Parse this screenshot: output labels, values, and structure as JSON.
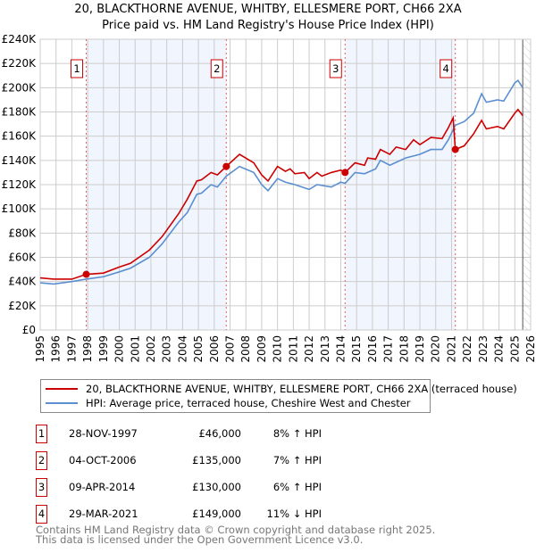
{
  "title": "20, BLACKTHORNE AVENUE, WHITBY, ELLESMERE PORT, CH66 2XA",
  "subtitle": "Price paid vs. HM Land Registry's House Price Index (HPI)",
  "chart_data": {
    "type": "line",
    "title": "20, BLACKTHORNE AVENUE, WHITBY, ELLESMERE PORT, CH66 2XA",
    "subtitle": "Price paid vs. HM Land Registry's House Price Index (HPI)",
    "xlim": [
      1995,
      2026
    ],
    "ylim": [
      0,
      240000
    ],
    "x_ticks": [
      "1995",
      "1996",
      "1997",
      "1998",
      "1999",
      "2000",
      "2001",
      "2002",
      "2003",
      "2004",
      "2005",
      "2006",
      "2007",
      "2008",
      "2009",
      "2010",
      "2011",
      "2012",
      "2013",
      "2014",
      "2015",
      "2016",
      "2017",
      "2018",
      "2019",
      "2020",
      "2021",
      "2022",
      "2023",
      "2024",
      "2025",
      "2026"
    ],
    "y_ticks": [
      {
        "v": 0,
        "label": "£0"
      },
      {
        "v": 20000,
        "label": "£20K"
      },
      {
        "v": 40000,
        "label": "£40K"
      },
      {
        "v": 60000,
        "label": "£60K"
      },
      {
        "v": 80000,
        "label": "£80K"
      },
      {
        "v": 100000,
        "label": "£100K"
      },
      {
        "v": 120000,
        "label": "£120K"
      },
      {
        "v": 140000,
        "label": "£140K"
      },
      {
        "v": 160000,
        "label": "£160K"
      },
      {
        "v": 180000,
        "label": "£180K"
      },
      {
        "v": 200000,
        "label": "£200K"
      },
      {
        "v": 220000,
        "label": "£220K"
      },
      {
        "v": 240000,
        "label": "£240K"
      }
    ],
    "grid": true,
    "shaded_ranges": [
      [
        1997.91,
        2006.76
      ],
      [
        2014.27,
        2021.24
      ]
    ],
    "hatched_from": 2025.5,
    "series": [
      {
        "name": "20, BLACKTHORNE AVENUE, WHITBY, ELLESMERE PORT, CH66 2XA (terraced house)",
        "color": "#cc0000",
        "x": [
          1995,
          1995.85,
          1997,
          1997.91,
          1999,
          2000,
          2000.7,
          2001.9,
          2002.7,
          2003.75,
          2004.3,
          2004.9,
          2005.2,
          2005.8,
          2006.2,
          2006.76,
          2007.6,
          2008.5,
          2009,
          2009.4,
          2010,
          2010.5,
          2010.8,
          2011.1,
          2011.7,
          2012,
          2012.5,
          2012.8,
          2013.4,
          2014,
          2014.27,
          2014.9,
          2015.5,
          2015.7,
          2016.2,
          2016.5,
          2017.1,
          2017.5,
          2018.1,
          2018.6,
          2019,
          2019.7,
          2020.4,
          2020.8,
          2021.1,
          2021.24,
          2021.8,
          2022.4,
          2022.9,
          2023.2,
          2023.9,
          2024.3,
          2025,
          2025.2,
          2025.5
        ],
        "y": [
          43000,
          42000,
          42000,
          46000,
          47000,
          52000,
          55000,
          66000,
          77000,
          96000,
          108000,
          123000,
          124000,
          130000,
          128000,
          135000,
          145000,
          138000,
          128000,
          123000,
          135000,
          131000,
          133000,
          129000,
          130000,
          125000,
          130000,
          127000,
          130000,
          132000,
          130000,
          138000,
          136000,
          142000,
          141000,
          149000,
          145000,
          151000,
          149000,
          157000,
          153000,
          159000,
          158000,
          167000,
          175000,
          149000,
          152000,
          162000,
          173000,
          166000,
          168000,
          166000,
          179000,
          182000,
          177000
        ]
      },
      {
        "name": "HPI: Average price, terraced house, Cheshire West and Chester",
        "color": "#5b8fd0",
        "x": [
          1995,
          1995.85,
          1997,
          1997.91,
          1999,
          2000,
          2000.7,
          2001.9,
          2002.7,
          2003.75,
          2004.3,
          2004.9,
          2005.2,
          2005.8,
          2006.2,
          2006.76,
          2007.6,
          2008.5,
          2009,
          2009.4,
          2010,
          2010.5,
          2011.1,
          2012,
          2012.5,
          2013.4,
          2014,
          2014.27,
          2014.9,
          2015.5,
          2016.2,
          2016.5,
          2017.1,
          2018.1,
          2019,
          2019.7,
          2020.4,
          2020.8,
          2021.24,
          2021.8,
          2022.4,
          2022.9,
          2023.2,
          2023.9,
          2024.3,
          2025,
          2025.2,
          2025.5
        ],
        "y": [
          39000,
          38000,
          40000,
          42000,
          44000,
          48000,
          51000,
          60000,
          71000,
          89000,
          97000,
          112000,
          113000,
          120000,
          118000,
          127000,
          135000,
          130000,
          120000,
          115000,
          125000,
          122000,
          120000,
          116000,
          120000,
          118000,
          122000,
          121000,
          130000,
          129000,
          133000,
          140000,
          136000,
          142000,
          145000,
          149000,
          149000,
          157000,
          169000,
          172000,
          179000,
          195000,
          188000,
          190000,
          189000,
          204000,
          206000,
          200000
        ]
      }
    ],
    "sales": [
      {
        "label": "1",
        "x": 1997.91,
        "y": 46000
      },
      {
        "label": "2",
        "x": 2006.76,
        "y": 135000
      },
      {
        "label": "3",
        "x": 2014.27,
        "y": 130000
      },
      {
        "label": "4",
        "x": 2021.24,
        "y": 149000
      }
    ]
  },
  "legend": {
    "red": "20, BLACKTHORNE AVENUE, WHITBY, ELLESMERE PORT, CH66 2XA (terraced house)",
    "blue": "HPI: Average price, terraced house, Cheshire West and Chester"
  },
  "table": [
    {
      "num": "1",
      "date": "28-NOV-1997",
      "price": "£46,000",
      "hpi": "8% ↑ HPI"
    },
    {
      "num": "2",
      "date": "04-OCT-2006",
      "price": "£135,000",
      "hpi": "7% ↑ HPI"
    },
    {
      "num": "3",
      "date": "09-APR-2014",
      "price": "£130,000",
      "hpi": "6% ↑ HPI"
    },
    {
      "num": "4",
      "date": "29-MAR-2021",
      "price": "£149,000",
      "hpi": "11% ↓ HPI"
    }
  ],
  "footer": {
    "line1": "Contains HM Land Registry data © Crown copyright and database right 2025.",
    "line2": "This data is licensed under the Open Government Licence v3.0."
  }
}
